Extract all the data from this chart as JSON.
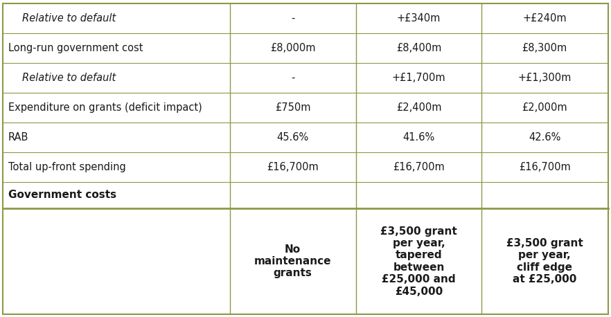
{
  "col_headers": [
    "",
    "No\nmaintenance\ngrants",
    "£3,500 grant\nper year,\ntapered\nbetween\n£25,000 and\n£45,000",
    "£3,500 grant\nper year,\ncliff edge\nat £25,000"
  ],
  "section_label": "Government costs",
  "rows": [
    {
      "label": "Total up-front spending",
      "italic": false,
      "indent": false,
      "values": [
        "£16,700m",
        "£16,700m",
        "£16,700m"
      ]
    },
    {
      "label": "RAB",
      "italic": false,
      "indent": false,
      "values": [
        "45.6%",
        "41.6%",
        "42.6%"
      ]
    },
    {
      "label": "Expenditure on grants (deficit impact)",
      "italic": false,
      "indent": false,
      "values": [
        "£750m",
        "£2,400m",
        "£2,000m"
      ]
    },
    {
      "label": "Relative to default",
      "italic": true,
      "indent": true,
      "values": [
        "-",
        "+£1,700m",
        "+£1,300m"
      ]
    },
    {
      "label": "Long-run government cost",
      "italic": false,
      "indent": false,
      "values": [
        "£8,000m",
        "£8,400m",
        "£8,300m"
      ]
    },
    {
      "label": "Relative to default",
      "italic": true,
      "indent": true,
      "values": [
        "-",
        "+£340m",
        "+£240m"
      ]
    }
  ],
  "border_color": "#8B9A46",
  "text_color": "#1a1a1a",
  "bg_color": "#ffffff",
  "font_size": 10.5,
  "header_font_size": 11
}
